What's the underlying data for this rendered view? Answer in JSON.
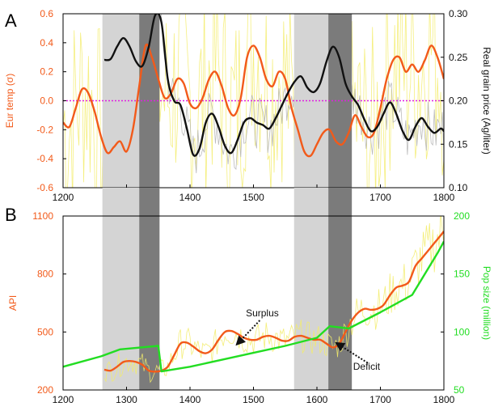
{
  "figure": {
    "panel_a_label": "A",
    "panel_b_label": "B",
    "colors": {
      "orange": "#f25a1a",
      "green": "#22dd22",
      "yellow_noise": "#f3ec6a",
      "grey_noise": "#b5b5b5",
      "black": "#111111",
      "magenta": "#e020e0",
      "shade_light": "#d4d4d4",
      "shade_dark": "#7b7b7b"
    }
  },
  "chart_data": [
    {
      "id": "A",
      "type": "line",
      "x_ticks": [
        "1200",
        "1300",
        "1400",
        "1500",
        "1600",
        "1700",
        "1800"
      ],
      "xlim": [
        1200,
        1800
      ],
      "ylabel_left": "Eur temp (σ)",
      "ylabel_right": "Real grain price (Ag/liter)",
      "y_left_ticks": [
        "0.6",
        "0.4",
        "0.2",
        "0.0",
        "-0.2",
        "-0.4",
        "-0.6"
      ],
      "ylim_left": [
        -0.6,
        0.6
      ],
      "y_right_ticks": [
        "0.30",
        "0.25",
        "0.20",
        "0.15",
        "0.10"
      ],
      "ylim_right": [
        0.1,
        0.3
      ],
      "reference_line_y_left": 0.0,
      "shaded_periods": [
        {
          "start": 1262,
          "end": 1320,
          "shade": "light"
        },
        {
          "start": 1320,
          "end": 1352,
          "shade": "dark"
        },
        {
          "start": 1564,
          "end": 1618,
          "shade": "light"
        },
        {
          "start": 1618,
          "end": 1655,
          "shade": "dark"
        }
      ],
      "series": [
        {
          "axis": "left",
          "color": "orange",
          "style": "smooth",
          "x": [
            1200,
            1210,
            1220,
            1230,
            1240,
            1250,
            1260,
            1270,
            1280,
            1290,
            1300,
            1310,
            1320,
            1330,
            1340,
            1350,
            1360,
            1370,
            1380,
            1390,
            1400,
            1410,
            1420,
            1430,
            1440,
            1450,
            1460,
            1470,
            1480,
            1490,
            1500,
            1510,
            1520,
            1530,
            1540,
            1550,
            1560,
            1570,
            1580,
            1590,
            1600,
            1610,
            1620,
            1630,
            1640,
            1650,
            1660,
            1670,
            1680,
            1690,
            1700,
            1710,
            1720,
            1730,
            1740,
            1750,
            1760,
            1770,
            1780,
            1790,
            1800
          ],
          "y": [
            -0.15,
            -0.18,
            -0.05,
            0.08,
            0.05,
            -0.08,
            -0.25,
            -0.36,
            -0.32,
            -0.28,
            -0.35,
            -0.2,
            0.1,
            0.38,
            0.3,
            0.15,
            0.02,
            0.05,
            0.15,
            0.12,
            -0.02,
            -0.05,
            0.02,
            0.15,
            0.2,
            0.1,
            -0.05,
            -0.1,
            0.02,
            0.3,
            0.38,
            0.3,
            0.15,
            0.1,
            0.2,
            0.15,
            -0.05,
            -0.2,
            -0.35,
            -0.38,
            -0.3,
            -0.22,
            -0.2,
            -0.28,
            -0.3,
            -0.22,
            -0.1,
            -0.18,
            -0.25,
            -0.22,
            -0.05,
            0.15,
            0.28,
            0.3,
            0.2,
            0.25,
            0.2,
            0.28,
            0.38,
            0.3,
            0.15
          ]
        },
        {
          "axis": "right",
          "color": "black",
          "style": "smooth",
          "x": [
            1265,
            1275,
            1285,
            1295,
            1305,
            1315,
            1325,
            1335,
            1345,
            1355,
            1365,
            1375,
            1385,
            1395,
            1405,
            1415,
            1425,
            1435,
            1445,
            1455,
            1465,
            1475,
            1485,
            1495,
            1505,
            1515,
            1525,
            1535,
            1545,
            1555,
            1565,
            1575,
            1585,
            1595,
            1605,
            1615,
            1625,
            1635,
            1645,
            1655,
            1665,
            1675,
            1685,
            1695,
            1705,
            1715,
            1725,
            1735,
            1745,
            1755,
            1765,
            1775,
            1785,
            1795,
            1800
          ],
          "y": [
            0.247,
            0.248,
            0.262,
            0.272,
            0.262,
            0.245,
            0.24,
            0.262,
            0.298,
            0.29,
            0.225,
            0.2,
            0.195,
            0.168,
            0.138,
            0.145,
            0.175,
            0.185,
            0.17,
            0.148,
            0.14,
            0.155,
            0.175,
            0.18,
            0.175,
            0.172,
            0.168,
            0.18,
            0.195,
            0.21,
            0.222,
            0.228,
            0.215,
            0.21,
            0.22,
            0.245,
            0.262,
            0.25,
            0.22,
            0.205,
            0.195,
            0.178,
            0.165,
            0.17,
            0.185,
            0.198,
            0.185,
            0.165,
            0.155,
            0.17,
            0.18,
            0.17,
            0.163,
            0.168,
            0.165
          ]
        }
      ]
    },
    {
      "id": "B",
      "type": "line",
      "x_ticks": [
        "1200",
        "1300",
        "1400",
        "1500",
        "1600",
        "1700",
        "1800"
      ],
      "xlim": [
        1200,
        1800
      ],
      "ylabel_left": "API",
      "ylabel_right": "Pop size (million)",
      "y_left_ticks": [
        "1100",
        "800",
        "500",
        "200"
      ],
      "ylim_left": [
        200,
        1100
      ],
      "y_right_ticks": [
        "200",
        "150",
        "100",
        "50"
      ],
      "ylim_right": [
        50,
        200
      ],
      "annotations": [
        {
          "text": "Surplus",
          "x": 1488,
          "y": 580
        },
        {
          "text": "Deficit",
          "x": 1657,
          "y": 305
        }
      ],
      "series": [
        {
          "axis": "left",
          "color": "orange",
          "style": "smooth",
          "x": [
            1265,
            1275,
            1285,
            1295,
            1305,
            1315,
            1325,
            1335,
            1345,
            1355,
            1365,
            1375,
            1385,
            1395,
            1405,
            1415,
            1425,
            1435,
            1445,
            1455,
            1465,
            1475,
            1485,
            1495,
            1505,
            1515,
            1525,
            1535,
            1545,
            1555,
            1565,
            1575,
            1585,
            1595,
            1605,
            1615,
            1625,
            1635,
            1645,
            1655,
            1665,
            1675,
            1685,
            1695,
            1705,
            1715,
            1725,
            1735,
            1745,
            1755,
            1765,
            1775,
            1785,
            1795,
            1800
          ],
          "y": [
            305,
            300,
            320,
            345,
            350,
            345,
            330,
            300,
            295,
            300,
            320,
            380,
            440,
            445,
            425,
            400,
            390,
            410,
            460,
            500,
            505,
            490,
            470,
            460,
            460,
            475,
            480,
            470,
            455,
            455,
            475,
            480,
            470,
            460,
            460,
            440,
            420,
            440,
            500,
            560,
            600,
            620,
            615,
            620,
            640,
            690,
            730,
            740,
            760,
            840,
            880,
            920,
            960,
            1000,
            1020
          ]
        },
        {
          "axis": "right",
          "color": "green",
          "style": "linear",
          "x": [
            1200,
            1260,
            1290,
            1350,
            1355,
            1400,
            1450,
            1500,
            1550,
            1600,
            1620,
            1650,
            1700,
            1750,
            1790,
            1800
          ],
          "y": [
            70,
            79,
            85,
            88,
            66,
            70,
            76,
            82,
            88,
            95,
            105,
            103,
            117,
            132,
            168,
            178
          ]
        }
      ]
    }
  ]
}
